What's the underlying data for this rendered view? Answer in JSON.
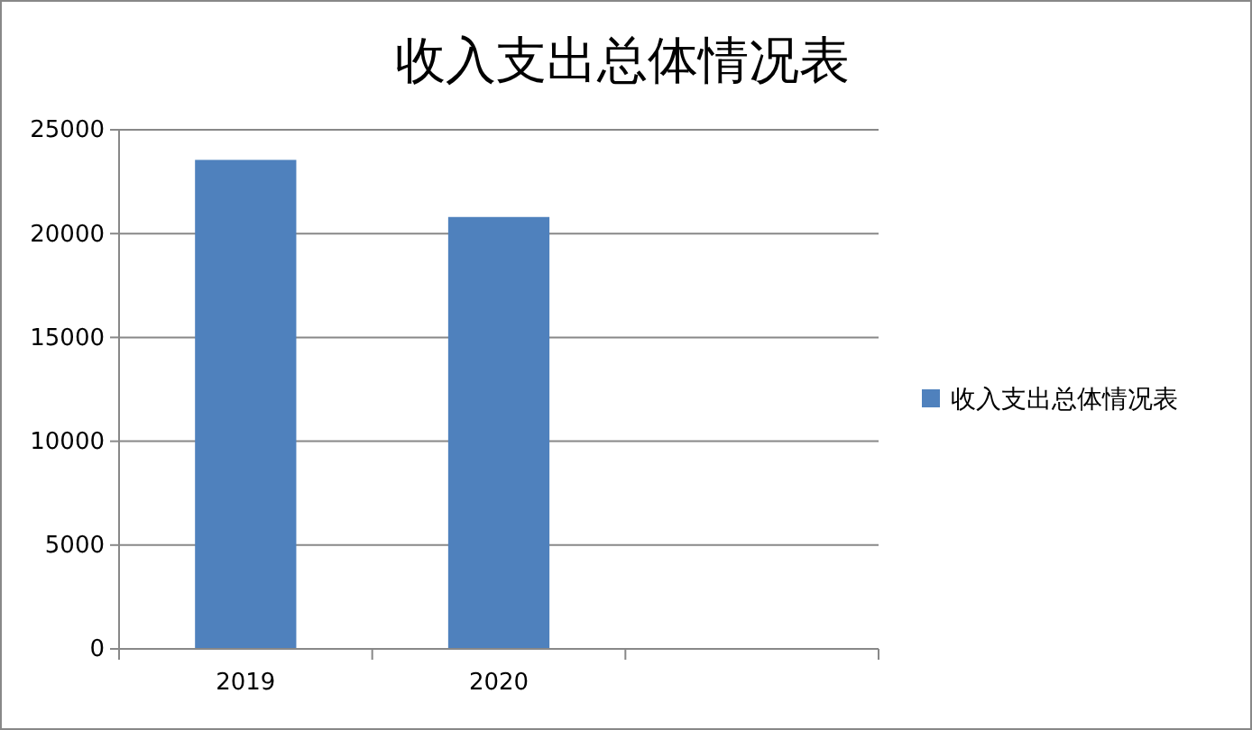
{
  "chart_data": {
    "type": "bar",
    "title": "收入支出总体情况表",
    "categories": [
      "2019",
      "2020",
      null
    ],
    "series": [
      {
        "name": "收入支出总体情况表",
        "color": "#4f81bd",
        "values": [
          23550,
          20800,
          null
        ]
      }
    ],
    "ylim": [
      0,
      25000
    ],
    "yticks": [
      0,
      5000,
      10000,
      15000,
      20000,
      25000
    ],
    "grid": "y",
    "legend": "right"
  }
}
